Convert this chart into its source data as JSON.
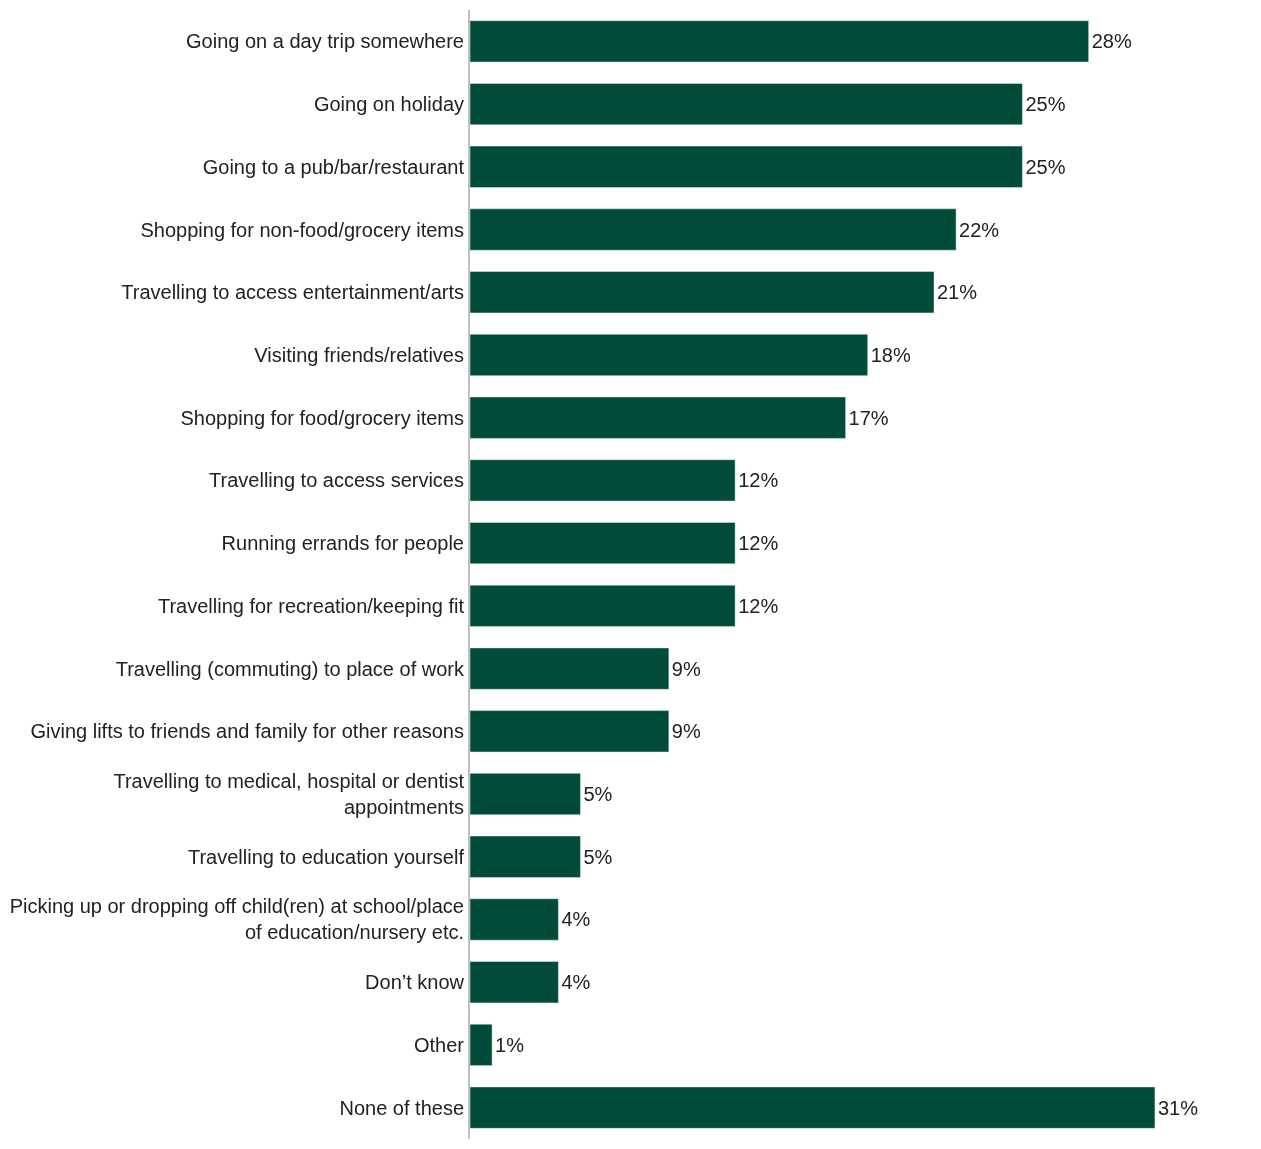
{
  "chart_data": {
    "type": "bar",
    "orientation": "horizontal",
    "categories": [
      "Going on a day trip somewhere",
      "Going on holiday",
      "Going to a pub/bar/restaurant",
      "Shopping for non-food/grocery items",
      "Travelling to access entertainment/arts",
      "Visiting friends/relatives",
      "Shopping for food/grocery items",
      "Travelling to access services",
      "Running errands for people",
      "Travelling for recreation/keeping fit",
      "Travelling (commuting) to place of work",
      "Giving lifts to friends and family for other reasons",
      "Travelling to medical, hospital or dentist\nappointments",
      "Travelling to education yourself",
      "Picking up or dropping off child(ren) at school/place\nof education/nursery etc.",
      "Don’t know",
      "Other",
      "None of these"
    ],
    "values": [
      28,
      25,
      25,
      22,
      21,
      18,
      17,
      12,
      12,
      12,
      9,
      9,
      5,
      5,
      4,
      4,
      1,
      31
    ],
    "value_labels": [
      "28%",
      "25%",
      "25%",
      "22%",
      "21%",
      "18%",
      "17%",
      "12%",
      "12%",
      "12%",
      "9%",
      "9%",
      "5%",
      "5%",
      "4%",
      "4%",
      "1%",
      "31%"
    ],
    "color": "#004b3a",
    "tick_labels": "y",
    "legend": false
  }
}
